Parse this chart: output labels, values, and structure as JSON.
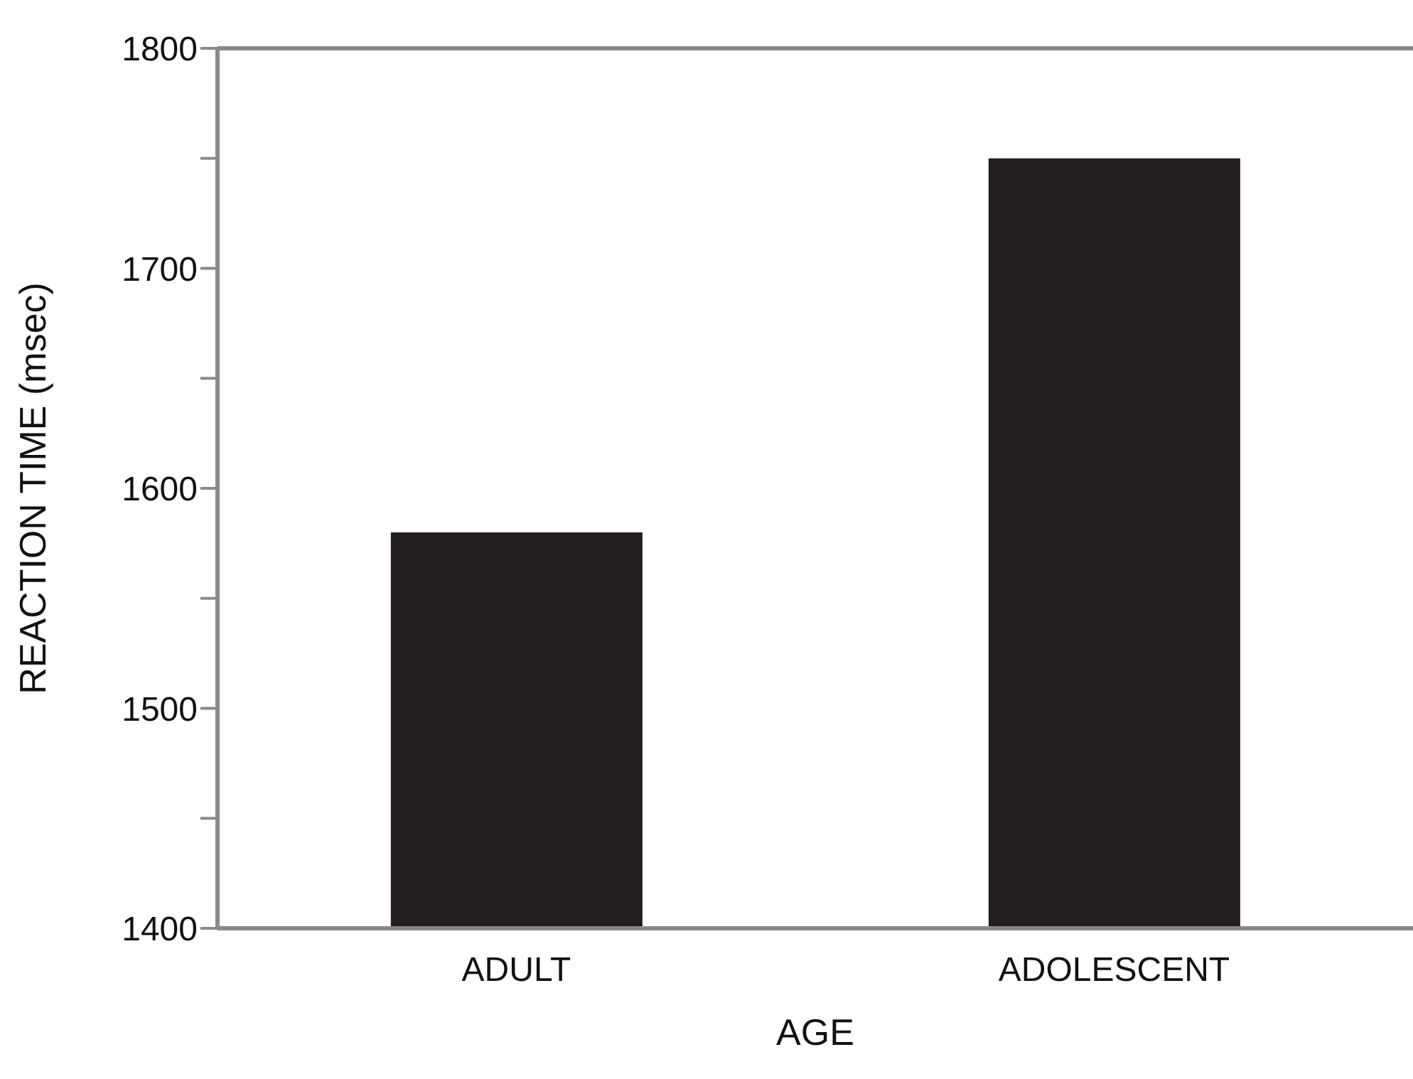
{
  "chart_data": {
    "type": "bar",
    "xlabel": "AGE",
    "ylabel": "REACTION TIME (msec)",
    "categories": [
      "ADULT",
      "ADOLESCENT"
    ],
    "values": [
      1580,
      1750
    ],
    "color": "#231f20",
    "ylim": [
      1400,
      1800
    ],
    "yticks": [
      1400,
      {
        "value": 1450,
        "label": null
      },
      1500,
      {
        "value": 1550,
        "label": null
      },
      1600,
      {
        "value": 1650,
        "label": null
      },
      1700,
      {
        "value": 1750,
        "label": null
      },
      1800
    ],
    "grid": false,
    "legend": false
  }
}
